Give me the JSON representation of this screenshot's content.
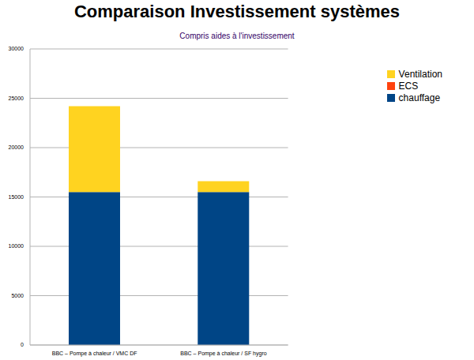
{
  "chart_data": {
    "type": "bar",
    "title": "Comparaison Investissement systèmes",
    "subtitle": "Compris aides à l'investissement",
    "categories": [
      "BBC – Pompe à chaleur / VMC DF",
      "BBC – Pompe à chaleur / SF hygro"
    ],
    "series": [
      {
        "name": "chauffage",
        "color": "#004586",
        "values": [
          15500,
          15500
        ]
      },
      {
        "name": "ECS",
        "color": "#ff420e",
        "values": [
          0,
          0
        ]
      },
      {
        "name": "Ventilation",
        "color": "#ffd320",
        "values": [
          8700,
          1100
        ]
      }
    ],
    "stacked": true,
    "ylim": [
      0,
      30000
    ],
    "yticks": [
      0,
      5000,
      10000,
      15000,
      20000,
      25000,
      30000
    ],
    "grid": true,
    "legend": "right"
  }
}
